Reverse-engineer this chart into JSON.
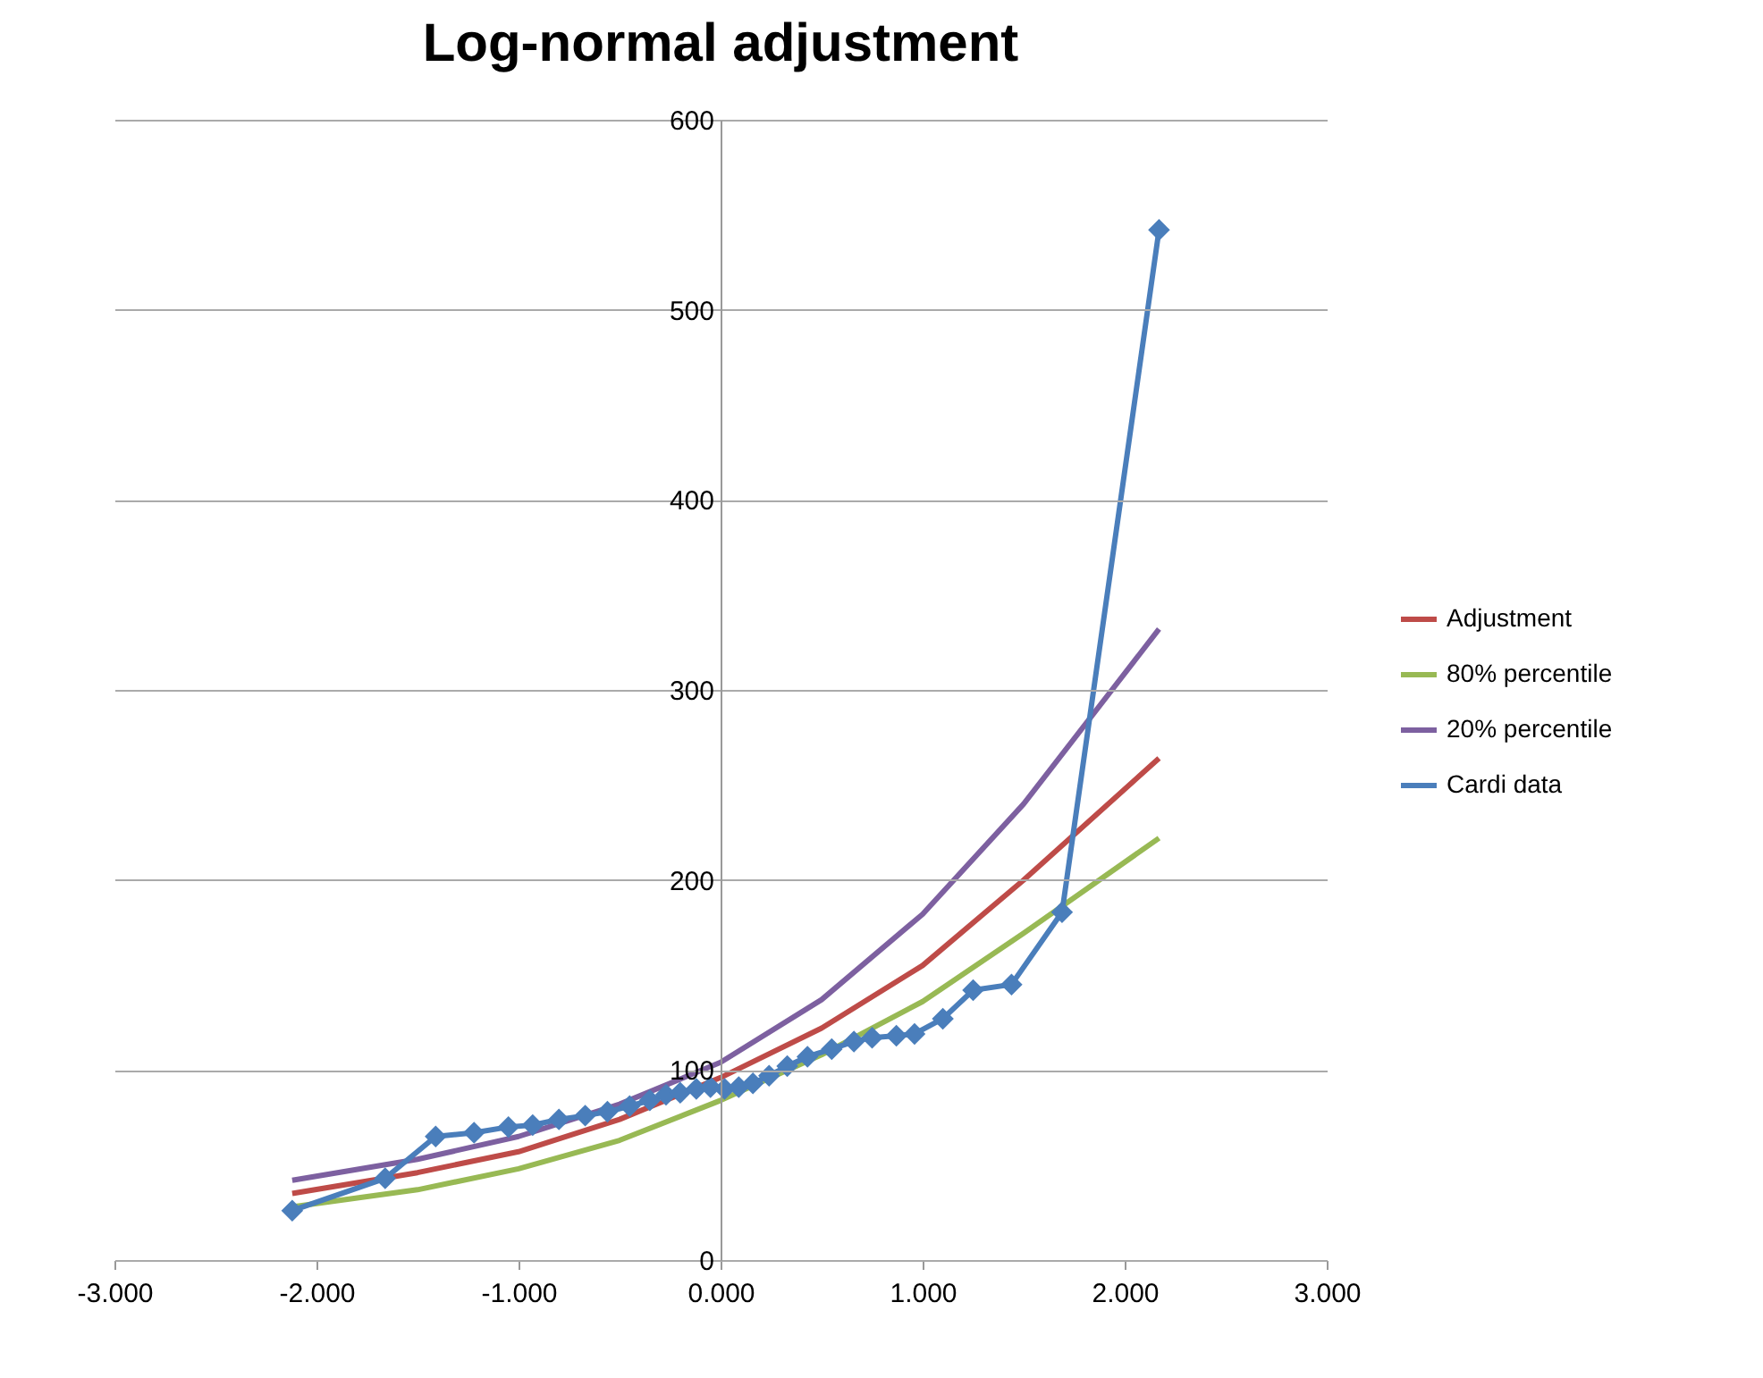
{
  "chart_data": {
    "type": "line",
    "title": "Log-normal adjustment",
    "xlim": [
      -3,
      3
    ],
    "xticks": [
      {
        "value": -3,
        "label": "-3.000"
      },
      {
        "value": -2,
        "label": "-2.000"
      },
      {
        "value": -1,
        "label": "-1.000"
      },
      {
        "value": 0,
        "label": "0.000"
      },
      {
        "value": 1,
        "label": "1.000"
      },
      {
        "value": 2,
        "label": "2.000"
      },
      {
        "value": 3,
        "label": "3.000"
      }
    ],
    "ylim": [
      0,
      600
    ],
    "yticks": [
      0,
      100,
      200,
      300,
      400,
      500,
      600
    ],
    "grid": "y",
    "legend": "right",
    "line_style": "solid",
    "series": [
      {
        "name": "Adjustment",
        "color": "#be4b48",
        "marker": "none",
        "x": [
          -2.12,
          -1.5,
          -1,
          -0.5,
          0,
          0.5,
          1,
          1.5,
          2.17
        ],
        "values": [
          35,
          46,
          57,
          74,
          96,
          122,
          155,
          200,
          264
        ]
      },
      {
        "name": "80% percentile",
        "color": "#98b954",
        "marker": "none",
        "x": [
          -2.12,
          -1.5,
          -1,
          -0.5,
          0,
          0.5,
          1,
          1.5,
          2.17
        ],
        "values": [
          28,
          37,
          48,
          63,
          84,
          108,
          136,
          172,
          222
        ]
      },
      {
        "name": "20% percentile",
        "color": "#7d60a0",
        "marker": "none",
        "x": [
          -2.12,
          -1.5,
          -1,
          -0.5,
          0,
          0.5,
          1,
          1.5,
          2.17
        ],
        "values": [
          42,
          53,
          65,
          82,
          104,
          137,
          182,
          240,
          332
        ]
      },
      {
        "name": "Cardi data",
        "color": "#4a7ebb",
        "marker": "diamond",
        "x": [
          -2.12,
          -1.66,
          -1.41,
          -1.22,
          -1.05,
          -0.93,
          -0.8,
          -0.67,
          -0.56,
          -0.45,
          -0.35,
          -0.27,
          -0.2,
          -0.12,
          -0.05,
          0.02,
          0.09,
          0.16,
          0.24,
          0.33,
          0.43,
          0.55,
          0.66,
          0.75,
          0.87,
          0.96,
          1.1,
          1.25,
          1.44,
          1.69,
          2.17
        ],
        "values": [
          26,
          43,
          65,
          67,
          70,
          71,
          74,
          76,
          78,
          81,
          84,
          87,
          88,
          90,
          91,
          90,
          91,
          93,
          97,
          102,
          107,
          111,
          115,
          117,
          118,
          119,
          127,
          142,
          145,
          183,
          542
        ]
      }
    ]
  }
}
